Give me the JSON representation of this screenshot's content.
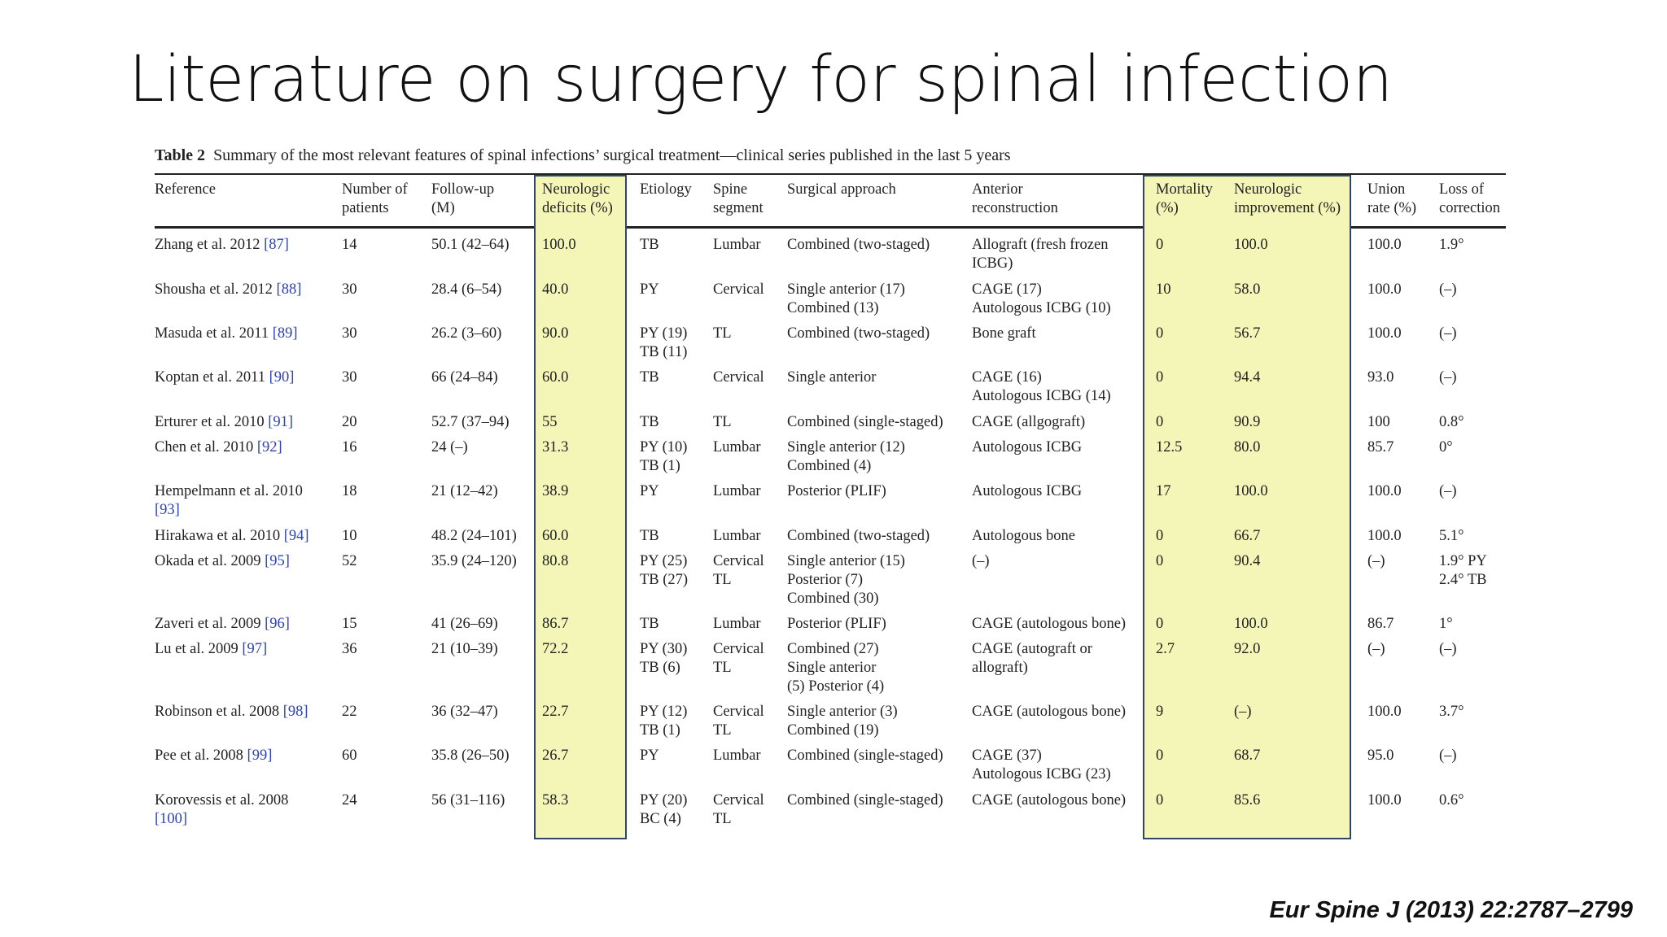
{
  "slide": {
    "title": "Literature on surgery for spinal infection",
    "citation": "Eur Spine J (2013) 22:2787–2799"
  },
  "table": {
    "caption_label": "Table 2",
    "caption_text": "Summary of the most relevant features of spinal infections’ surgical treatment—clinical series published in the last 5 years",
    "headers": {
      "reference": [
        "Reference"
      ],
      "patients": [
        "Number of",
        "patients"
      ],
      "followup": [
        "Follow-up",
        "(M)"
      ],
      "deficits": [
        "Neurologic",
        "deficits (%)"
      ],
      "etiology": [
        "Etiology"
      ],
      "segment": [
        "Spine",
        "segment"
      ],
      "approach": [
        "Surgical approach"
      ],
      "reconstruction": [
        "Anterior",
        "reconstruction"
      ],
      "mortality": [
        "Mortality",
        "(%)"
      ],
      "improvement": [
        "Neurologic",
        "improvement (%)"
      ],
      "union": [
        "Union",
        "rate (%)"
      ],
      "loss": [
        "Loss of",
        "correction"
      ]
    },
    "rows": [
      {
        "ref": [
          "Zhang et al. 2012 "
        ],
        "refnum": "[87]",
        "patients": "14",
        "followup": "50.1 (42–64)",
        "deficits": "100.0",
        "etiology": [
          "TB"
        ],
        "segment": [
          "Lumbar"
        ],
        "approach": [
          "Combined (two-staged)"
        ],
        "reconstruction": [
          "Allograft (fresh frozen",
          "  ICBG)"
        ],
        "mortality": "0",
        "improvement": "100.0",
        "union": "100.0",
        "loss": [
          "1.9°"
        ]
      },
      {
        "ref": [
          "Shousha et al. 2012 "
        ],
        "refnum": "[88]",
        "patients": "30",
        "followup": "28.4 (6–54)",
        "deficits": "40.0",
        "etiology": [
          "PY"
        ],
        "segment": [
          "Cervical"
        ],
        "approach": [
          "Single anterior (17)",
          "Combined (13)"
        ],
        "reconstruction": [
          "CAGE (17)",
          "Autologous ICBG (10)"
        ],
        "mortality": "10",
        "improvement": "58.0",
        "union": "100.0",
        "loss": [
          "(–)"
        ]
      },
      {
        "ref": [
          "Masuda et al. 2011 "
        ],
        "refnum": "[89]",
        "patients": "30",
        "followup": "26.2 (3–60)",
        "deficits": "90.0",
        "etiology": [
          "PY (19)",
          "TB (11)"
        ],
        "segment": [
          "TL"
        ],
        "approach": [
          "Combined (two-staged)"
        ],
        "reconstruction": [
          "Bone graft"
        ],
        "mortality": "0",
        "improvement": "56.7",
        "union": "100.0",
        "loss": [
          "(–)"
        ]
      },
      {
        "ref": [
          "Koptan et al. 2011 "
        ],
        "refnum": "[90]",
        "patients": "30",
        "followup": "66 (24–84)",
        "deficits": "60.0",
        "etiology": [
          "TB"
        ],
        "segment": [
          "Cervical"
        ],
        "approach": [
          "Single anterior"
        ],
        "reconstruction": [
          "CAGE (16)",
          "Autologous ICBG (14)"
        ],
        "mortality": "0",
        "improvement": "94.4",
        "union": "93.0",
        "loss": [
          "(–)"
        ]
      },
      {
        "ref": [
          "Erturer et al. 2010 "
        ],
        "refnum": "[91]",
        "patients": "20",
        "followup": "52.7 (37–94)",
        "deficits": "55",
        "etiology": [
          "TB"
        ],
        "segment": [
          "TL"
        ],
        "approach": [
          "Combined (single-staged)"
        ],
        "reconstruction": [
          "CAGE (allgograft)"
        ],
        "mortality": "0",
        "improvement": "90.9",
        "union": "100",
        "loss": [
          "0.8°"
        ]
      },
      {
        "ref": [
          "Chen et al. 2010 "
        ],
        "refnum": "[92]",
        "patients": "16",
        "followup": "24 (–)",
        "deficits": "31.3",
        "etiology": [
          "PY (10)",
          "TB (1)"
        ],
        "segment": [
          "Lumbar"
        ],
        "approach": [
          "Single anterior (12)",
          "Combined (4)"
        ],
        "reconstruction": [
          "Autologous ICBG"
        ],
        "mortality": "12.5",
        "improvement": "80.0",
        "union": "85.7",
        "loss": [
          "0°"
        ]
      },
      {
        "ref": [
          "Hempelmann et al. 2010",
          "  "
        ],
        "refnum": "[93]",
        "patients": "18",
        "followup": "21 (12–42)",
        "deficits": "38.9",
        "etiology": [
          "PY"
        ],
        "segment": [
          "Lumbar"
        ],
        "approach": [
          "Posterior (PLIF)"
        ],
        "reconstruction": [
          "Autologous ICBG"
        ],
        "mortality": "17",
        "improvement": "100.0",
        "union": "100.0",
        "loss": [
          "(–)"
        ]
      },
      {
        "ref": [
          "Hirakawa et al. 2010 "
        ],
        "refnum": "[94]",
        "patients": "10",
        "followup": "48.2 (24–101)",
        "deficits": "60.0",
        "etiology": [
          "TB"
        ],
        "segment": [
          "Lumbar"
        ],
        "approach": [
          "Combined (two-staged)"
        ],
        "reconstruction": [
          "Autologous bone"
        ],
        "mortality": "0",
        "improvement": "66.7",
        "union": "100.0",
        "loss": [
          "5.1°"
        ]
      },
      {
        "ref": [
          "Okada et al. 2009 "
        ],
        "refnum": "[95]",
        "patients": "52",
        "followup": "35.9 (24–120)",
        "deficits": "80.8",
        "etiology": [
          "PY (25)",
          "TB (27)"
        ],
        "segment": [
          "Cervical",
          "TL"
        ],
        "approach": [
          "Single anterior (15)",
          "Posterior (7)",
          "Combined (30)"
        ],
        "reconstruction": [
          "(–)"
        ],
        "mortality": "0",
        "improvement": "90.4",
        "union": "(–)",
        "loss": [
          "1.9° PY",
          "2.4° TB"
        ]
      },
      {
        "ref": [
          "Zaveri et al. 2009 "
        ],
        "refnum": "[96]",
        "patients": "15",
        "followup": "41 (26–69)",
        "deficits": "86.7",
        "etiology": [
          "TB"
        ],
        "segment": [
          "Lumbar"
        ],
        "approach": [
          "Posterior (PLIF)"
        ],
        "reconstruction": [
          "CAGE (autologous bone)"
        ],
        "mortality": "0",
        "improvement": "100.0",
        "union": "86.7",
        "loss": [
          "1°"
        ]
      },
      {
        "ref": [
          "Lu et al. 2009 "
        ],
        "refnum": "[97]",
        "patients": "36",
        "followup": "21 (10–39)",
        "deficits": "72.2",
        "etiology": [
          "PY (30)",
          "TB (6)"
        ],
        "segment": [
          "Cervical",
          "TL"
        ],
        "approach": [
          "Combined (27)",
          "Single anterior",
          "  (5) Posterior (4)"
        ],
        "reconstruction": [
          "CAGE (autograft or",
          "  allograft)"
        ],
        "mortality": "2.7",
        "improvement": "92.0",
        "union": "(–)",
        "loss": [
          "(–)"
        ]
      },
      {
        "ref": [
          "Robinson et al. 2008 "
        ],
        "refnum": "[98]",
        "patients": "22",
        "followup": "36 (32–47)",
        "deficits": "22.7",
        "etiology": [
          "PY (12)",
          "TB (1)"
        ],
        "segment": [
          "Cervical",
          "TL"
        ],
        "approach": [
          "Single anterior (3)",
          "Combined (19)"
        ],
        "reconstruction": [
          "CAGE (autologous bone)"
        ],
        "mortality": "9",
        "improvement": "(–)",
        "union": "100.0",
        "loss": [
          "3.7°"
        ]
      },
      {
        "ref": [
          "Pee et al. 2008 "
        ],
        "refnum": "[99]",
        "patients": "60",
        "followup": "35.8 (26–50)",
        "deficits": "26.7",
        "etiology": [
          "PY"
        ],
        "segment": [
          "Lumbar"
        ],
        "approach": [
          "Combined (single-staged)"
        ],
        "reconstruction": [
          "CAGE (37)",
          "Autologous ICBG (23)"
        ],
        "mortality": "0",
        "improvement": "68.7",
        "union": "95.0",
        "loss": [
          "(–)"
        ]
      },
      {
        "ref": [
          "Korovessis et al. 2008",
          "  "
        ],
        "refnum": "[100]",
        "patients": "24",
        "followup": "56 (31–116)",
        "deficits": "58.3",
        "etiology": [
          "PY (20)",
          "BC (4)"
        ],
        "segment": [
          "Cervical",
          "TL"
        ],
        "approach": [
          "Combined (single-staged)"
        ],
        "reconstruction": [
          "CAGE (autologous bone)"
        ],
        "mortality": "0",
        "improvement": "85.6",
        "union": "100.0",
        "loss": [
          "0.6°"
        ]
      }
    ]
  }
}
